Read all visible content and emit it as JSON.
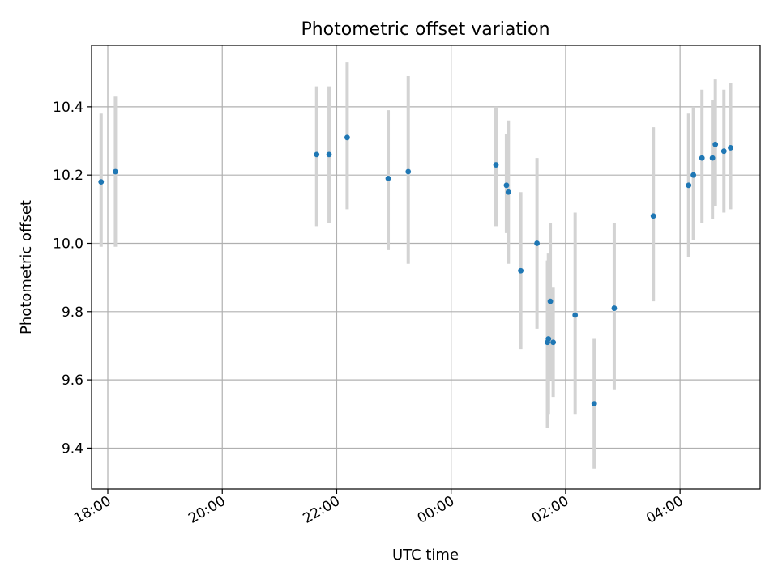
{
  "chart_data": {
    "type": "scatter",
    "title": "Photometric offset variation",
    "xlabel": "UTC time",
    "ylabel": "Photometric offset",
    "x_is_time": true,
    "xlim": [
      "17:43",
      "05:24"
    ],
    "ylim": [
      9.28,
      10.58
    ],
    "x_ticks": [
      "18:00",
      "20:00",
      "22:00",
      "00:00",
      "02:00",
      "04:00"
    ],
    "x_tick_labels": [
      "18:00",
      "20:00",
      "22:00",
      "00:00",
      "02:00",
      "04:00"
    ],
    "y_ticks": [
      9.4,
      9.6,
      9.8,
      10.0,
      10.2,
      10.4
    ],
    "y_tick_labels": [
      "9.4",
      "9.6",
      "9.8",
      "10.0",
      "10.2",
      "10.4"
    ],
    "grid": true,
    "point_color": "#1f77b4",
    "errorbar_color": "#d3d3d3",
    "series": [
      {
        "points": [
          {
            "x": "17:53",
            "y": 10.18,
            "err_low": 9.99,
            "err_high": 10.38
          },
          {
            "x": "18:08",
            "y": 10.21,
            "err_low": 9.99,
            "err_high": 10.43
          },
          {
            "x": "21:39",
            "y": 10.26,
            "err_low": 10.05,
            "err_high": 10.46
          },
          {
            "x": "21:52",
            "y": 10.26,
            "err_low": 10.06,
            "err_high": 10.46
          },
          {
            "x": "22:11",
            "y": 10.31,
            "err_low": 10.1,
            "err_high": 10.53
          },
          {
            "x": "22:54",
            "y": 10.19,
            "err_low": 9.98,
            "err_high": 10.39
          },
          {
            "x": "23:15",
            "y": 10.21,
            "err_low": 9.94,
            "err_high": 10.49
          },
          {
            "x": "00:47",
            "y": 10.23,
            "err_low": 10.05,
            "err_high": 10.4
          },
          {
            "x": "00:58",
            "y": 10.17,
            "err_low": 10.03,
            "err_high": 10.32
          },
          {
            "x": "01:00",
            "y": 10.15,
            "err_low": 9.94,
            "err_high": 10.36
          },
          {
            "x": "01:13",
            "y": 9.92,
            "err_low": 9.69,
            "err_high": 10.15
          },
          {
            "x": "01:30",
            "y": 10.0,
            "err_low": 9.75,
            "err_high": 10.25
          },
          {
            "x": "01:41",
            "y": 9.71,
            "err_low": 9.46,
            "err_high": 9.95
          },
          {
            "x": "01:42",
            "y": 9.72,
            "err_low": 9.5,
            "err_high": 9.97
          },
          {
            "x": "01:44",
            "y": 9.83,
            "err_low": 9.6,
            "err_high": 10.06
          },
          {
            "x": "01:47",
            "y": 9.71,
            "err_low": 9.55,
            "err_high": 9.87
          },
          {
            "x": "02:10",
            "y": 9.79,
            "err_low": 9.5,
            "err_high": 10.09
          },
          {
            "x": "02:30",
            "y": 9.53,
            "err_low": 9.34,
            "err_high": 9.72
          },
          {
            "x": "02:51",
            "y": 9.81,
            "err_low": 9.57,
            "err_high": 10.06
          },
          {
            "x": "03:32",
            "y": 10.08,
            "err_low": 9.83,
            "err_high": 10.34
          },
          {
            "x": "04:09",
            "y": 10.17,
            "err_low": 9.96,
            "err_high": 10.38
          },
          {
            "x": "04:14",
            "y": 10.2,
            "err_low": 10.01,
            "err_high": 10.4
          },
          {
            "x": "04:23",
            "y": 10.25,
            "err_low": 10.06,
            "err_high": 10.45
          },
          {
            "x": "04:34",
            "y": 10.25,
            "err_low": 10.07,
            "err_high": 10.42
          },
          {
            "x": "04:37",
            "y": 10.29,
            "err_low": 10.11,
            "err_high": 10.48
          },
          {
            "x": "04:46",
            "y": 10.27,
            "err_low": 10.09,
            "err_high": 10.45
          },
          {
            "x": "04:53",
            "y": 10.28,
            "err_low": 10.1,
            "err_high": 10.47
          }
        ]
      }
    ]
  }
}
